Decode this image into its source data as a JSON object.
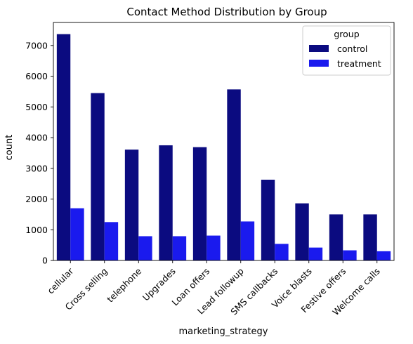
{
  "chart_data": {
    "type": "bar",
    "title": "Contact Method Distribution by Group",
    "xlabel": "marketing_strategy",
    "ylabel": "count",
    "categories": [
      "cellular",
      "Cross selling",
      "telephone",
      "Upgrades",
      "Loan offers",
      "Lead followup",
      "SMS callbacks",
      "Voice blasts",
      "Festive offers",
      "Welcome calls"
    ],
    "series": [
      {
        "name": "control",
        "color": "#0b0b80",
        "values": [
          7370,
          5450,
          3610,
          3750,
          3690,
          5570,
          2630,
          1860,
          1500,
          1500
        ]
      },
      {
        "name": "treatment",
        "color": "#1a1aee",
        "values": [
          1700,
          1250,
          790,
          790,
          810,
          1270,
          540,
          420,
          330,
          300
        ]
      }
    ],
    "ylim": [
      0,
      7750
    ],
    "yticks": [
      "0",
      "1000",
      "2000",
      "3000",
      "4000",
      "5000",
      "6000",
      "7000"
    ],
    "legend": {
      "title": "group",
      "position": "top-right"
    },
    "grid": false
  }
}
